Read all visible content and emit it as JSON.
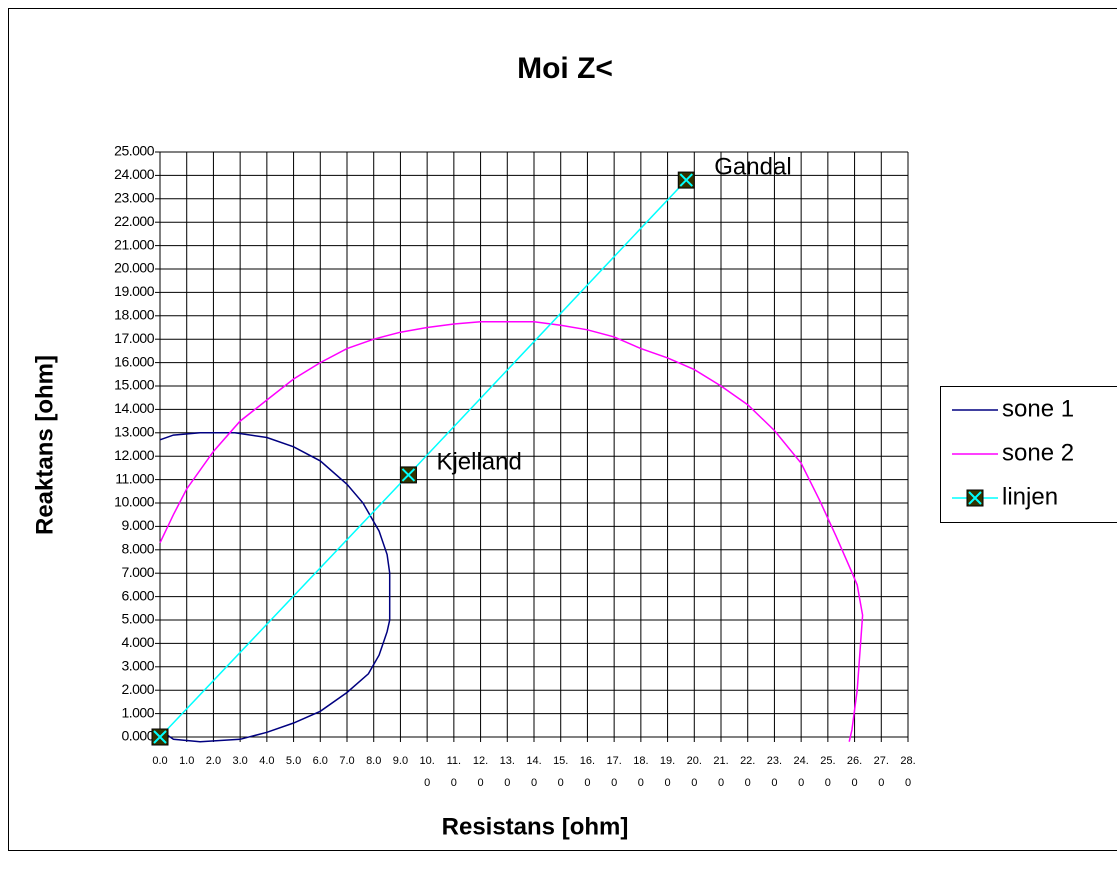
{
  "chart_data": {
    "type": "scatter",
    "title": "Moi Z<",
    "x_label": "Resistans [ohm]",
    "y_label": "Reaktans [ohm]",
    "xlim": [
      0,
      28
    ],
    "ylim": [
      0,
      25
    ],
    "grid": true,
    "legend": "right",
    "xticks": [
      {
        "value": 0,
        "label": "0.0"
      },
      {
        "value": 1,
        "label": "1.0"
      },
      {
        "value": 2,
        "label": "2.0"
      },
      {
        "value": 3,
        "label": "3.0"
      },
      {
        "value": 4,
        "label": "4.0"
      },
      {
        "value": 5,
        "label": "5.0"
      },
      {
        "value": 6,
        "label": "6.0"
      },
      {
        "value": 7,
        "label": "7.0"
      },
      {
        "value": 8,
        "label": "8.0"
      },
      {
        "value": 9,
        "label": "9.0"
      },
      {
        "value": 10,
        "label": "10.0"
      },
      {
        "value": 11,
        "label": "11.0"
      },
      {
        "value": 12,
        "label": "12.0"
      },
      {
        "value": 13,
        "label": "13.0"
      },
      {
        "value": 14,
        "label": "14.0"
      },
      {
        "value": 15,
        "label": "15.0"
      },
      {
        "value": 16,
        "label": "16.0"
      },
      {
        "value": 17,
        "label": "17.0"
      },
      {
        "value": 18,
        "label": "18.0"
      },
      {
        "value": 19,
        "label": "19.0"
      },
      {
        "value": 20,
        "label": "20.0"
      },
      {
        "value": 21,
        "label": "21.0"
      },
      {
        "value": 22,
        "label": "22.0"
      },
      {
        "value": 23,
        "label": "23.0"
      },
      {
        "value": 24,
        "label": "24.0"
      },
      {
        "value": 25,
        "label": "25.0"
      },
      {
        "value": 26,
        "label": "26.0"
      },
      {
        "value": 27,
        "label": "27.0"
      },
      {
        "value": 28,
        "label": "28.0"
      }
    ],
    "yticks": [
      {
        "value": 0,
        "label": "0.000"
      },
      {
        "value": 1,
        "label": "1.000"
      },
      {
        "value": 2,
        "label": "2.000"
      },
      {
        "value": 3,
        "label": "3.000"
      },
      {
        "value": 4,
        "label": "4.000"
      },
      {
        "value": 5,
        "label": "5.000"
      },
      {
        "value": 6,
        "label": "6.000"
      },
      {
        "value": 7,
        "label": "7.000"
      },
      {
        "value": 8,
        "label": "8.000"
      },
      {
        "value": 9,
        "label": "9.000"
      },
      {
        "value": 10,
        "label": "10.000"
      },
      {
        "value": 11,
        "label": "11.000"
      },
      {
        "value": 12,
        "label": "12.000"
      },
      {
        "value": 13,
        "label": "13.000"
      },
      {
        "value": 14,
        "label": "14.000"
      },
      {
        "value": 15,
        "label": "15.000"
      },
      {
        "value": 16,
        "label": "16.000"
      },
      {
        "value": 17,
        "label": "17.000"
      },
      {
        "value": 18,
        "label": "18.000"
      },
      {
        "value": 19,
        "label": "19.000"
      },
      {
        "value": 20,
        "label": "20.000"
      },
      {
        "value": 21,
        "label": "21.000"
      },
      {
        "value": 22,
        "label": "22.000"
      },
      {
        "value": 23,
        "label": "23.000"
      },
      {
        "value": 24,
        "label": "24.000"
      },
      {
        "value": 25,
        "label": "25.000"
      }
    ],
    "series": [
      {
        "name": "sone 1",
        "color": "#000080",
        "markers": false,
        "x": [
          0,
          0.5,
          1.5,
          2.8,
          4.0,
          5.0,
          6.0,
          7.0,
          7.6,
          8.2,
          8.5,
          8.6,
          8.6,
          8.5,
          8.2,
          7.8,
          7.0,
          6.0,
          5.0,
          4.0,
          3.0,
          1.5,
          0.5,
          0
        ],
        "values": [
          12.7,
          12.9,
          13.0,
          13.0,
          12.8,
          12.4,
          11.8,
          10.8,
          10.0,
          8.8,
          7.8,
          7.0,
          5.0,
          4.5,
          3.5,
          2.7,
          1.9,
          1.1,
          0.6,
          0.2,
          -0.1,
          -0.2,
          -0.1,
          0.3
        ]
      },
      {
        "name": "sone 2",
        "color": "#ff00ff",
        "markers": false,
        "x": [
          0,
          0.5,
          1.0,
          2.0,
          3.0,
          4.0,
          5.0,
          6.0,
          7.0,
          8.0,
          9.0,
          10.0,
          11.0,
          12.0,
          14.0,
          15.0,
          16.0,
          17.0,
          18.0,
          19.0,
          20.0,
          21.0,
          22.0,
          23.0,
          24.0,
          24.7,
          25.3,
          25.8,
          26.1,
          26.3,
          26.1,
          25.9,
          25.8
        ],
        "values": [
          8.3,
          9.5,
          10.6,
          12.2,
          13.5,
          14.4,
          15.3,
          16.0,
          16.6,
          17.0,
          17.3,
          17.5,
          17.65,
          17.75,
          17.75,
          17.6,
          17.4,
          17.1,
          16.6,
          16.2,
          15.7,
          15.0,
          14.2,
          13.1,
          11.7,
          10.1,
          8.6,
          7.3,
          6.5,
          5.2,
          2.0,
          0.3,
          -0.2
        ]
      },
      {
        "name": "linjen",
        "color": "#00ffff",
        "markers": true,
        "marker_color": "#333300",
        "x": [
          0,
          9.3,
          19.7
        ],
        "values": [
          0,
          11.2,
          23.8
        ]
      }
    ],
    "annotations": [
      "Kjelland",
      "Gandal"
    ]
  }
}
